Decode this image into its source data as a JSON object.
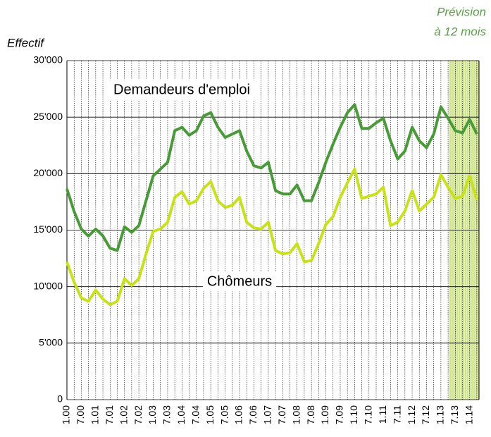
{
  "chart_data": {
    "type": "line",
    "y_label": "Effectif",
    "annotation": [
      "Prévision",
      "à 12 mois"
    ],
    "categories": [
      "1.00",
      null,
      "7.00",
      null,
      "1.01",
      null,
      "7.01",
      null,
      "1.02",
      null,
      "7.02",
      null,
      "1.03",
      null,
      "7.03",
      null,
      "1.04",
      null,
      "7.04",
      null,
      "1.05",
      null,
      "7.05",
      null,
      "1.06",
      null,
      "7.06",
      null,
      "1.07",
      null,
      "7.07",
      null,
      "1.08",
      null,
      "7.08",
      null,
      "1.09",
      null,
      "7.09",
      null,
      "1.10",
      null,
      "7.10",
      null,
      "1.11",
      null,
      "7.11",
      null,
      "1.12",
      null,
      "7.12",
      null,
      "1.13",
      null,
      "7.13",
      null,
      "1.14",
      null
    ],
    "series": [
      {
        "name": "Demandeurs d'emploi",
        "color": "#4a9a3a",
        "values": [
          18650,
          16650,
          15100,
          14470,
          15100,
          14500,
          13400,
          13200,
          15300,
          14800,
          15400,
          17600,
          19800,
          20400,
          21000,
          23800,
          24100,
          23400,
          23800,
          25100,
          25400,
          24100,
          23200,
          23500,
          23800,
          22000,
          20700,
          20500,
          21000,
          18500,
          18200,
          18200,
          19000,
          17600,
          17600,
          19200,
          21000,
          22600,
          24100,
          25400,
          26100,
          24000,
          24000,
          24500,
          24900,
          22900,
          21300,
          22000,
          24100,
          22900,
          22300,
          23500,
          25900,
          24900,
          23800,
          23600,
          24800,
          23500
        ]
      },
      {
        "name": "Chômeurs",
        "color": "#c8e01e",
        "values": [
          12200,
          10400,
          9000,
          8700,
          9700,
          8900,
          8400,
          8700,
          10700,
          10100,
          10700,
          12900,
          14900,
          15100,
          15700,
          17900,
          18400,
          17300,
          17600,
          18700,
          19300,
          17600,
          17000,
          17200,
          17900,
          15700,
          15200,
          15100,
          15700,
          13200,
          12900,
          13000,
          13800,
          12200,
          12300,
          13800,
          15500,
          16200,
          17900,
          19200,
          20400,
          17800,
          18000,
          18200,
          18800,
          15400,
          15700,
          16700,
          18500,
          16700,
          17300,
          17900,
          19900,
          18800,
          17800,
          18000,
          19800,
          17700
        ]
      }
    ],
    "ylim": [
      0,
      30000
    ],
    "yticks": [
      0,
      {
        "value": 5000,
        "label": "5'000"
      },
      {
        "value": 10000,
        "label": "10'000"
      },
      {
        "value": 15000,
        "label": "15'000"
      },
      {
        "value": 20000,
        "label": "20'000"
      },
      {
        "value": 25000,
        "label": "25'000"
      },
      {
        "value": 30000,
        "label": "30'000"
      }
    ],
    "grid": true
  }
}
